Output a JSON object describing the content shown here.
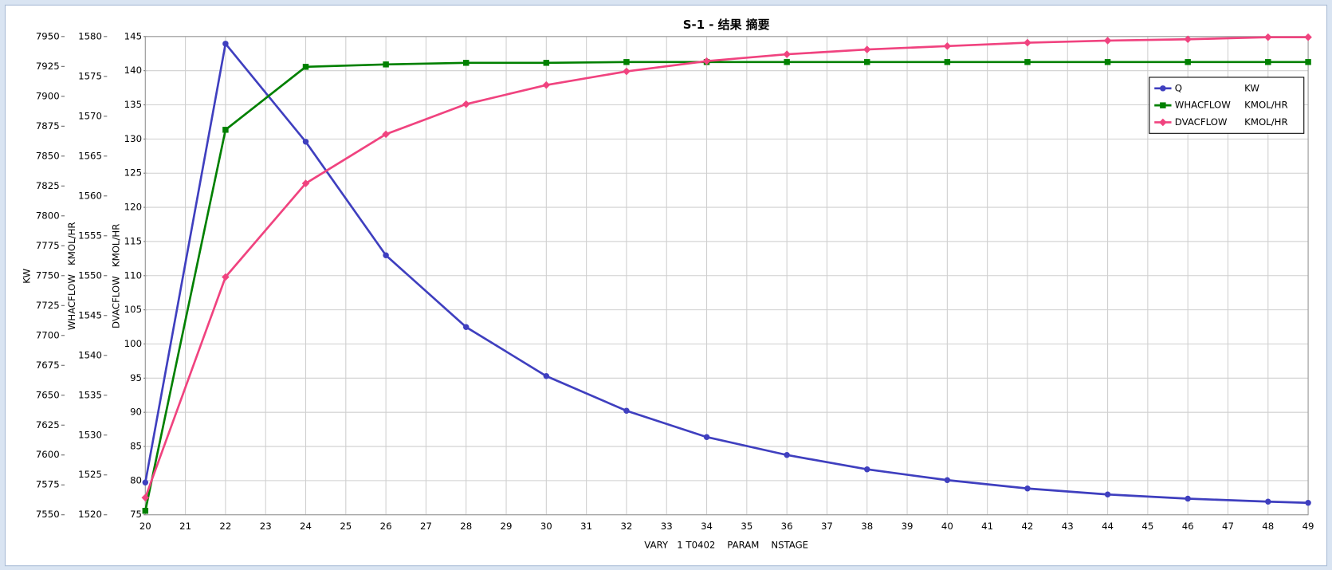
{
  "chart_data": {
    "type": "line",
    "title": "S-1 - 结果 摘要",
    "xlabel": "VARY   1 T0402    PARAM    NSTAGE",
    "x": [
      20,
      22,
      24,
      26,
      28,
      30,
      32,
      34,
      36,
      38,
      40,
      42,
      44,
      46,
      48,
      49
    ],
    "xlim": [
      20,
      49
    ],
    "xticks": [
      20,
      21,
      22,
      23,
      24,
      25,
      26,
      27,
      28,
      29,
      30,
      31,
      32,
      33,
      34,
      35,
      36,
      37,
      38,
      39,
      40,
      41,
      42,
      43,
      44,
      45,
      46,
      47,
      48,
      49
    ],
    "ylabel": "KW",
    "ylim": [
      7550,
      7950
    ],
    "yticks": [
      7550,
      7575,
      7600,
      7625,
      7650,
      7675,
      7700,
      7725,
      7750,
      7775,
      7800,
      7825,
      7850,
      7875,
      7900,
      7925,
      7950
    ],
    "y2label": "WHACFLOW   KMOL/HR",
    "y2lim": [
      1520,
      1580
    ],
    "y2ticks": [
      1520,
      1525,
      1530,
      1535,
      1540,
      1545,
      1550,
      1555,
      1560,
      1565,
      1570,
      1575,
      1580
    ],
    "y3label": "DVACFLOW   KMOL/HR",
    "y3lim": [
      75,
      145
    ],
    "y3ticks": [
      75,
      80,
      85,
      90,
      95,
      100,
      105,
      110,
      115,
      120,
      125,
      130,
      135,
      140,
      145
    ],
    "grid": true,
    "grid_axis": "y3",
    "legend": "upper right",
    "series": [
      {
        "name": "Q",
        "unit": "KW",
        "color": "#3f3fbf",
        "marker": "circle",
        "axis": "y",
        "values": [
          7577,
          7944,
          7862,
          7767,
          7707,
          7666,
          7637,
          7615,
          7600,
          7588,
          7579,
          7572,
          7567,
          7563.5,
          7561,
          7560
        ]
      },
      {
        "name": "WHACFLOW",
        "unit": "KMOL/HR",
        "color": "#008000",
        "marker": "square",
        "axis": "y2",
        "values": [
          1520.5,
          1568.3,
          1576.2,
          1576.5,
          1576.7,
          1576.7,
          1576.8,
          1576.8,
          1576.8,
          1576.8,
          1576.8,
          1576.8,
          1576.8,
          1576.8,
          1576.8,
          1576.8
        ]
      },
      {
        "name": "DVACFLOW",
        "unit": "KMOL/HR",
        "color": "#f0437f",
        "marker": "diamond",
        "axis": "y3",
        "values": [
          77.5,
          109.8,
          123.5,
          130.7,
          135.1,
          137.9,
          139.9,
          141.4,
          142.4,
          143.1,
          143.6,
          144.1,
          144.4,
          144.6,
          144.9,
          144.9
        ]
      }
    ]
  }
}
